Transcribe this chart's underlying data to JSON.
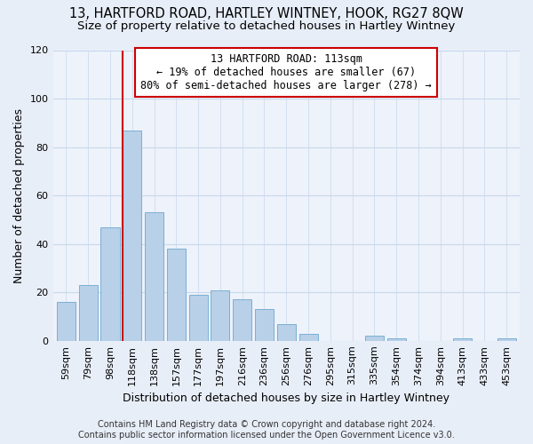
{
  "title": "13, HARTFORD ROAD, HARTLEY WINTNEY, HOOK, RG27 8QW",
  "subtitle": "Size of property relative to detached houses in Hartley Wintney",
  "xlabel": "Distribution of detached houses by size in Hartley Wintney",
  "ylabel": "Number of detached properties",
  "categories": [
    "59sqm",
    "79sqm",
    "98sqm",
    "118sqm",
    "138sqm",
    "157sqm",
    "177sqm",
    "197sqm",
    "216sqm",
    "236sqm",
    "256sqm",
    "276sqm",
    "295sqm",
    "315sqm",
    "335sqm",
    "354sqm",
    "374sqm",
    "394sqm",
    "413sqm",
    "433sqm",
    "453sqm"
  ],
  "values": [
    16,
    23,
    47,
    87,
    53,
    38,
    19,
    21,
    17,
    13,
    7,
    3,
    0,
    0,
    2,
    1,
    0,
    0,
    1,
    0,
    1
  ],
  "bar_color": "#b8d0e8",
  "bar_edge_color": "#7aafd4",
  "vline_color": "#cc0000",
  "annotation_text_line1": "13 HARTFORD ROAD: 113sqm",
  "annotation_text_line2": "← 19% of detached houses are smaller (67)",
  "annotation_text_line3": "80% of semi-detached houses are larger (278) →",
  "annotation_box_color": "#ffffff",
  "annotation_box_edge_color": "#cc0000",
  "ylim": [
    0,
    120
  ],
  "yticks": [
    0,
    20,
    40,
    60,
    80,
    100,
    120
  ],
  "footer_line1": "Contains HM Land Registry data © Crown copyright and database right 2024.",
  "footer_line2": "Contains public sector information licensed under the Open Government Licence v3.0.",
  "bg_color": "#e8eef8",
  "plot_bg_color": "#eef2fa",
  "title_fontsize": 10.5,
  "subtitle_fontsize": 9.5,
  "xlabel_fontsize": 9,
  "ylabel_fontsize": 9,
  "tick_fontsize": 8,
  "footer_fontsize": 7,
  "annotation_fontsize": 8.5,
  "grid_color": "#c8d8ec"
}
